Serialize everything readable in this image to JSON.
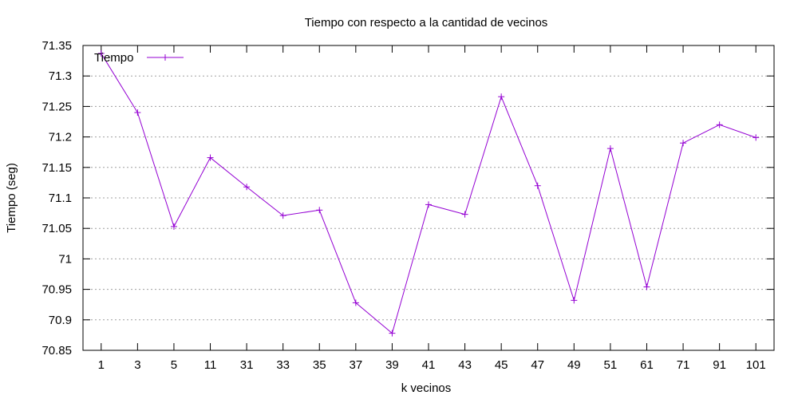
{
  "chart_data": {
    "type": "line",
    "title": "Tiempo con respecto a la cantidad de vecinos",
    "xlabel": "k vecinos",
    "ylabel": "Tiempo (seg)",
    "categories": [
      "1",
      "3",
      "5",
      "11",
      "31",
      "33",
      "35",
      "37",
      "39",
      "41",
      "43",
      "45",
      "47",
      "49",
      "51",
      "61",
      "71",
      "91",
      "101"
    ],
    "ylim": [
      70.85,
      71.35
    ],
    "yticks": [
      "70.85",
      "70.9",
      "70.95",
      "71",
      "71.05",
      "71.1",
      "71.15",
      "71.2",
      "71.25",
      "71.3",
      "71.35"
    ],
    "grid": "horizontal",
    "legend_position": "top-left",
    "series": [
      {
        "name": "Tiempo",
        "color": "#9400d3",
        "values": [
          71.337,
          71.24,
          71.053,
          71.166,
          71.118,
          71.071,
          71.08,
          70.928,
          70.878,
          71.089,
          71.073,
          71.266,
          71.12,
          70.932,
          71.181,
          70.954,
          71.19,
          71.22,
          71.199
        ]
      }
    ]
  }
}
